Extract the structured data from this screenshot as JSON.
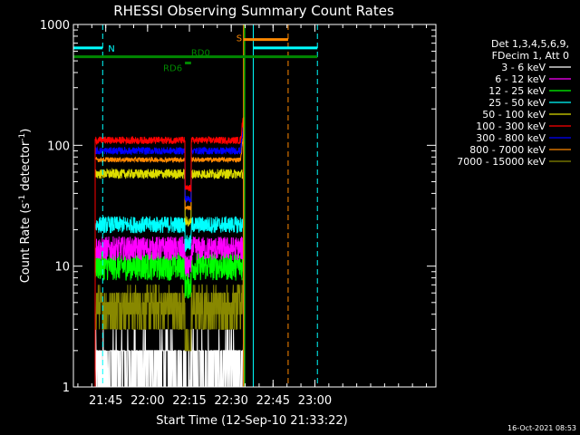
{
  "chart_data": {
    "type": "line",
    "title": "RHESSI Observing Summary Count Rates",
    "xlabel": "Start Time (12-Sep-10 21:33:22)",
    "ylabel_main": "Count Rate (s",
    "ylabel_sup1": "-1",
    "ylabel_mid": " detector",
    "ylabel_sup2": "-1",
    "ylabel_end": ")",
    "yscale": "log",
    "xlim_minutes_after_start": [
      0,
      130
    ],
    "ylim": [
      1,
      1000
    ],
    "grid": false,
    "x_ticks": [
      {
        "label": "21:45",
        "min": 11.6
      },
      {
        "label": "22:00",
        "min": 26.6
      },
      {
        "label": "22:15",
        "min": 41.6
      },
      {
        "label": "22:30",
        "min": 56.6
      },
      {
        "label": "22:45",
        "min": 71.6
      },
      {
        "label": "23:00",
        "min": 86.6
      }
    ],
    "y_ticks": [
      {
        "label": "1",
        "value": 1
      },
      {
        "label": "10",
        "value": 10
      },
      {
        "label": "100",
        "value": 100
      },
      {
        "label": "1000",
        "value": 1000
      }
    ],
    "legend": {
      "placement": "right",
      "header1": "Det 1,3,4,5,6,9,",
      "header2": "FDecim 1, Att 0"
    },
    "series": [
      {
        "name": "3 - 6 keV",
        "color": "#ffffff",
        "level": 1.3,
        "noise": 0.8
      },
      {
        "name": "6 - 12 keV",
        "color": "#ff00ff",
        "level": 14,
        "noise": 0.1
      },
      {
        "name": "12 - 25 keV",
        "color": "#00ff00",
        "level": 10,
        "noise": 0.12
      },
      {
        "name": "25 - 50 keV",
        "color": "#00ffff",
        "level": 22,
        "noise": 0.07
      },
      {
        "name": "50 - 100 keV",
        "color": "#dddd00",
        "level": 58,
        "noise": 0.04
      },
      {
        "name": "100 - 300 keV",
        "color": "#ff0000",
        "level": 110,
        "noise": 0.03
      },
      {
        "name": "300 - 800 keV",
        "color": "#0000ff",
        "level": 90,
        "noise": 0.03
      },
      {
        "name": "800 - 7000 keV",
        "color": "#ff8800",
        "level": 76,
        "noise": 0.02
      },
      {
        "name": "7000 - 15000 keV",
        "color": "#888800",
        "level": 4.5,
        "noise": 0.35
      }
    ],
    "data_window_minutes": [
      7.8,
      61.0
    ],
    "gap_minutes": [
      40.0,
      42.2
    ],
    "spike_minutes": 61.0,
    "flag_bars": [
      {
        "label": "N",
        "color": "#00ffff",
        "segments": [
          [
            0,
            10.5
          ],
          [
            64.5,
            87.5
          ]
        ],
        "value": 640
      },
      {
        "label": "S",
        "color": "#ff8800",
        "segments": [
          [
            61.0,
            77.0
          ]
        ],
        "value": 750
      },
      {
        "label": "RD0",
        "color": "#008800",
        "segments": [
          [
            0,
            87.5
          ]
        ],
        "value": 540
      },
      {
        "label": "RD6",
        "color": "#008800",
        "segments": [
          [
            40.0,
            42.2
          ]
        ],
        "value": 480
      }
    ],
    "vertical_markers": [
      {
        "min": 0.0,
        "color": "#00ffff",
        "style": "solid"
      },
      {
        "min": 10.5,
        "color": "#00ffff",
        "style": "dashed"
      },
      {
        "min": 61.0,
        "color": "#ff8800",
        "style": "solid"
      },
      {
        "min": 61.4,
        "color": "#00ff00",
        "style": "solid"
      },
      {
        "min": 64.5,
        "color": "#00ffff",
        "style": "solid"
      },
      {
        "min": 77.0,
        "color": "#ff8800",
        "style": "dashed"
      },
      {
        "min": 87.5,
        "color": "#00ffff",
        "style": "dashed"
      }
    ],
    "timestamp": "16-Oct-2021 08:53"
  }
}
